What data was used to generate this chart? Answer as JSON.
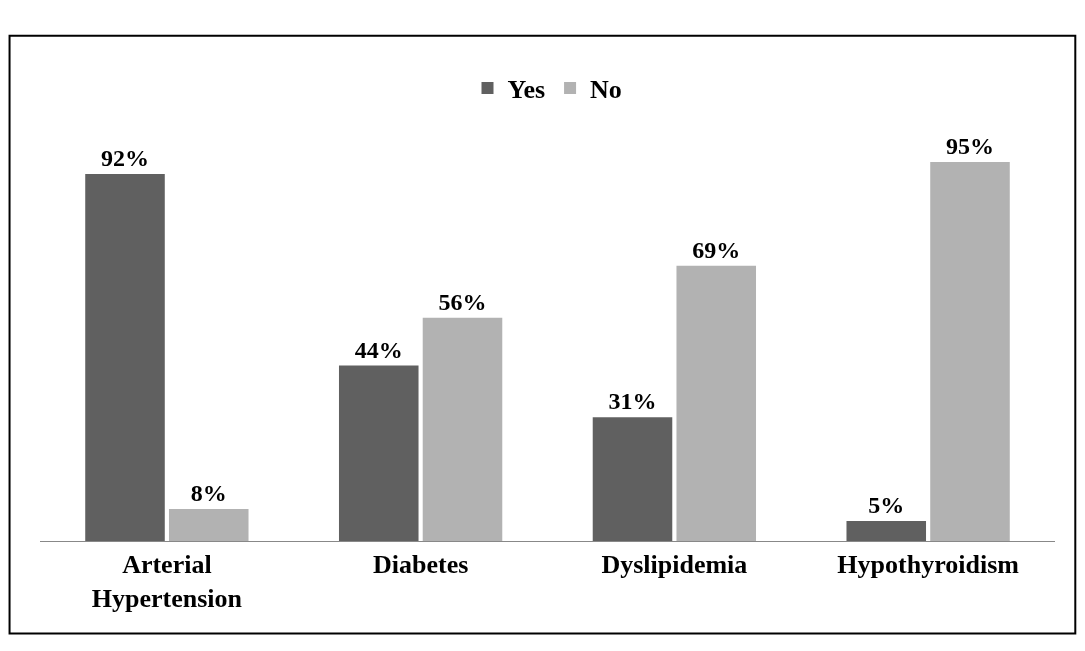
{
  "chart_data": {
    "type": "bar",
    "categories": [
      "Arterial Hypertension",
      "Diabetes",
      "Dyslipidemia",
      "Hypothyroidism"
    ],
    "series": [
      {
        "name": "Yes",
        "color": "#606060",
        "values": [
          92,
          44,
          31,
          5
        ],
        "value_labels": [
          "92%",
          "44%",
          "31%",
          "5%"
        ]
      },
      {
        "name": "No",
        "color": "#b2b2b2",
        "values": [
          8,
          56,
          69,
          95
        ],
        "value_labels": [
          "8%",
          "56%",
          "69%",
          "95%"
        ]
      }
    ],
    "legend": "top"
  }
}
